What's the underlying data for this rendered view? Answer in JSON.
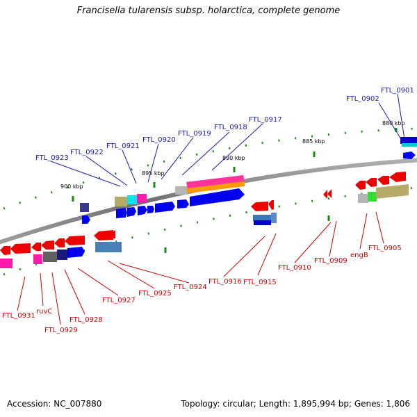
{
  "title": "Francisella tularensis subsp. holarctica, complete genome",
  "accession": "Accession: NC_007880",
  "summary": "Topology: circular; Length: 1,895,994 bp; Genes: 1,806",
  "ticks": [
    "880 kbp",
    "885 kbp",
    "890 kbp",
    "895 kbp",
    "900 kbp"
  ],
  "top_labels": [
    "FTL_0901",
    "FTL_0902",
    "FTL_0917",
    "FTL_0918",
    "FTL_0919",
    "FTL_0920",
    "FTL_0921",
    "FTL_0922",
    "FTL_0923"
  ],
  "bottom_labels": [
    "engB",
    "FTL_0905",
    "FTL_0909",
    "FTL_0910",
    "FTL_0915",
    "FTL_0916",
    "FTL_0924",
    "FTL_0925",
    "FTL_0927",
    "FTL_0928",
    "FTL_0929",
    "ruvC",
    "FTL_0931"
  ],
  "colors": {
    "forward_label": "#1a1aa6",
    "reverse_label": "#cc0000",
    "backbone": "#808080",
    "forward_gene": "#0000ee",
    "reverse_gene": "#ee0000",
    "tick_mark": "#1a8a1a"
  }
}
